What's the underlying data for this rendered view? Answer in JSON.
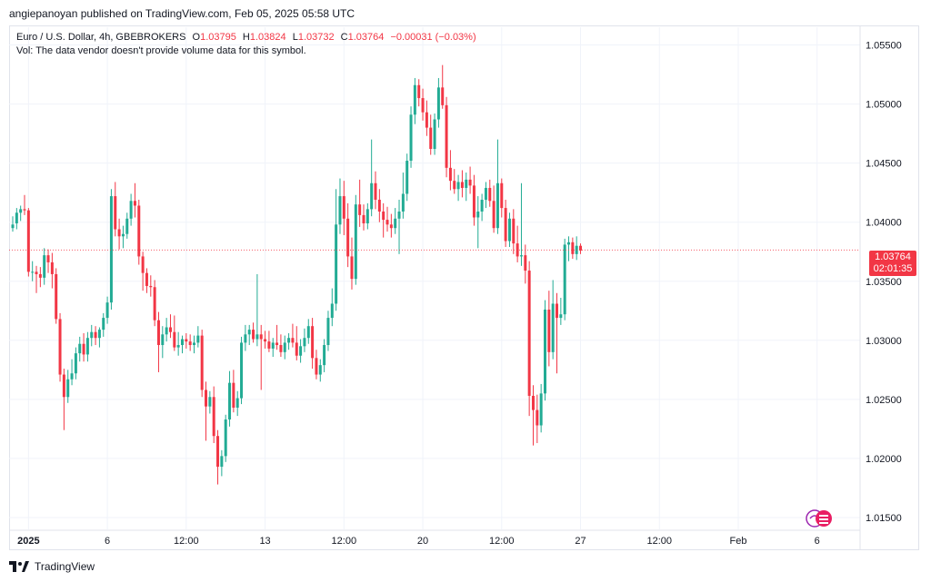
{
  "header": {
    "published_line": "angiepanoyan published on TradingView.com, Feb 05, 2025 05:58 UTC"
  },
  "legend": {
    "symbol": "Euro / U.S. Dollar, 4h, GBEBROKERS",
    "o_label": "O",
    "o_value": "1.03795",
    "h_label": "H",
    "h_value": "1.03824",
    "l_label": "L",
    "l_value": "1.03732",
    "c_label": "C",
    "c_value": "1.03764",
    "change": "−0.00031 (−0.03%)",
    "vol_note": "Vol: The data vendor doesn't provide volume data for this symbol."
  },
  "price_tag": {
    "price": "1.03764",
    "countdown": "02:01:35"
  },
  "footer": {
    "brand": "TradingView"
  },
  "colors": {
    "up": "#22ab94",
    "down": "#f23645",
    "grid": "#f0f3fa",
    "text": "#131722"
  },
  "chart_data": {
    "type": "candlestick",
    "title": "Euro / U.S. Dollar, 4h, GBEBROKERS",
    "ylim": [
      1.014,
      1.0565
    ],
    "y_ticks": [
      "1.05500",
      "1.05000",
      "1.04500",
      "1.04000",
      "1.03500",
      "1.03000",
      "1.02500",
      "1.02000",
      "1.01500"
    ],
    "y_tick_values": [
      1.055,
      1.05,
      1.045,
      1.04,
      1.035,
      1.03,
      1.025,
      1.02,
      1.015
    ],
    "x_ticks": [
      "2025",
      "6",
      "12:00",
      "13",
      "12:00",
      "20",
      "12:00",
      "27",
      "12:00",
      "Feb",
      "6"
    ],
    "x_tick_bar_index": [
      4,
      24,
      44,
      64,
      84,
      104,
      124,
      144,
      164,
      184,
      204
    ],
    "last_price": 1.03764,
    "candles": [
      [
        1.0395,
        1.0405,
        1.0392,
        1.0398
      ],
      [
        1.0399,
        1.0412,
        1.0394,
        1.0408
      ],
      [
        1.0408,
        1.0414,
        1.0401,
        1.0411
      ],
      [
        1.0411,
        1.0423,
        1.0406,
        1.041
      ],
      [
        1.041,
        1.0412,
        1.0354,
        1.0358
      ],
      [
        1.0358,
        1.0367,
        1.035,
        1.0358
      ],
      [
        1.0358,
        1.0363,
        1.034,
        1.0356
      ],
      [
        1.0356,
        1.0362,
        1.0345,
        1.0353
      ],
      [
        1.0353,
        1.0378,
        1.0347,
        1.0372
      ],
      [
        1.0372,
        1.0377,
        1.0357,
        1.0366
      ],
      [
        1.0366,
        1.0374,
        1.0344,
        1.0356
      ],
      [
        1.0356,
        1.0361,
        1.0314,
        1.0318
      ],
      [
        1.0318,
        1.0323,
        1.0265,
        1.0271
      ],
      [
        1.0271,
        1.0276,
        1.0224,
        1.0252
      ],
      [
        1.0252,
        1.0275,
        1.0247,
        1.0267
      ],
      [
        1.0267,
        1.0284,
        1.0262,
        1.0272
      ],
      [
        1.0272,
        1.0294,
        1.0267,
        1.0289
      ],
      [
        1.0289,
        1.0303,
        1.0282,
        1.0297
      ],
      [
        1.0297,
        1.0306,
        1.0282,
        1.0288
      ],
      [
        1.0288,
        1.0307,
        1.0282,
        1.0302
      ],
      [
        1.0302,
        1.0313,
        1.0295,
        1.0307
      ],
      [
        1.0307,
        1.0312,
        1.0296,
        1.0302
      ],
      [
        1.0302,
        1.0311,
        1.0294,
        1.0309
      ],
      [
        1.0309,
        1.0323,
        1.0303,
        1.0319
      ],
      [
        1.0319,
        1.0337,
        1.0314,
        1.0332
      ],
      [
        1.0332,
        1.0428,
        1.0326,
        1.0422
      ],
      [
        1.0422,
        1.0434,
        1.0388,
        1.0394
      ],
      [
        1.0394,
        1.0403,
        1.0377,
        1.0388
      ],
      [
        1.0388,
        1.0397,
        1.0378,
        1.039
      ],
      [
        1.039,
        1.0408,
        1.0386,
        1.0403
      ],
      [
        1.0403,
        1.0424,
        1.0397,
        1.0418
      ],
      [
        1.0418,
        1.0433,
        1.0404,
        1.0414
      ],
      [
        1.0414,
        1.0419,
        1.0364,
        1.0371
      ],
      [
        1.0371,
        1.0375,
        1.0342,
        1.0357
      ],
      [
        1.0357,
        1.0361,
        1.034,
        1.0346
      ],
      [
        1.0346,
        1.0355,
        1.0337,
        1.0345
      ],
      [
        1.0345,
        1.0351,
        1.0312,
        1.0317
      ],
      [
        1.0317,
        1.0324,
        1.0273,
        1.0296
      ],
      [
        1.0296,
        1.0312,
        1.0285,
        1.0305
      ],
      [
        1.0305,
        1.0319,
        1.0299,
        1.0311
      ],
      [
        1.0311,
        1.0322,
        1.0302,
        1.0307
      ],
      [
        1.0307,
        1.0321,
        1.0291,
        1.0294
      ],
      [
        1.0294,
        1.0307,
        1.0287,
        1.0296
      ],
      [
        1.0296,
        1.0304,
        1.0289,
        1.0301
      ],
      [
        1.0301,
        1.0306,
        1.0293,
        1.0299
      ],
      [
        1.0299,
        1.0305,
        1.0291,
        1.0296
      ],
      [
        1.0296,
        1.0304,
        1.0289,
        1.0298
      ],
      [
        1.0298,
        1.0312,
        1.0294,
        1.0304
      ],
      [
        1.0304,
        1.0309,
        1.0252,
        1.0258
      ],
      [
        1.0258,
        1.0265,
        1.0215,
        1.0244
      ],
      [
        1.0244,
        1.0257,
        1.0238,
        1.0252
      ],
      [
        1.0252,
        1.0261,
        1.0213,
        1.0219
      ],
      [
        1.0219,
        1.0224,
        1.0178,
        1.0193
      ],
      [
        1.0193,
        1.0207,
        1.0185,
        1.0202
      ],
      [
        1.0202,
        1.0237,
        1.0197,
        1.0233
      ],
      [
        1.0233,
        1.0274,
        1.0227,
        1.0264
      ],
      [
        1.0264,
        1.0275,
        1.0239,
        1.0243
      ],
      [
        1.0243,
        1.0257,
        1.0236,
        1.0251
      ],
      [
        1.0251,
        1.0303,
        1.0246,
        1.0298
      ],
      [
        1.0298,
        1.0313,
        1.0291,
        1.0305
      ],
      [
        1.0305,
        1.0313,
        1.0296,
        1.0309
      ],
      [
        1.0309,
        1.0315,
        1.0298,
        1.0301
      ],
      [
        1.0301,
        1.0356,
        1.0295,
        1.0305
      ],
      [
        1.0305,
        1.0313,
        1.0258,
        1.0301
      ],
      [
        1.0301,
        1.0308,
        1.0293,
        1.0299
      ],
      [
        1.0299,
        1.0308,
        1.029,
        1.0293
      ],
      [
        1.0293,
        1.0302,
        1.0286,
        1.0298
      ],
      [
        1.0298,
        1.0313,
        1.0292,
        1.0296
      ],
      [
        1.0296,
        1.0305,
        1.0286,
        1.029
      ],
      [
        1.029,
        1.0304,
        1.0284,
        1.0298
      ],
      [
        1.0298,
        1.0306,
        1.0292,
        1.0302
      ],
      [
        1.0302,
        1.0314,
        1.0294,
        1.0298
      ],
      [
        1.0298,
        1.0312,
        1.0283,
        1.0287
      ],
      [
        1.0287,
        1.0301,
        1.0281,
        1.0295
      ],
      [
        1.0295,
        1.031,
        1.029,
        1.0302
      ],
      [
        1.0302,
        1.0318,
        1.0297,
        1.0312
      ],
      [
        1.0312,
        1.0319,
        1.0276,
        1.0285
      ],
      [
        1.0285,
        1.0292,
        1.0267,
        1.0271
      ],
      [
        1.0271,
        1.0284,
        1.0265,
        1.0279
      ],
      [
        1.0279,
        1.0301,
        1.0273,
        1.0296
      ],
      [
        1.0296,
        1.0325,
        1.0291,
        1.0319
      ],
      [
        1.0319,
        1.0344,
        1.0312,
        1.0331
      ],
      [
        1.0331,
        1.0428,
        1.0325,
        1.0398
      ],
      [
        1.0398,
        1.0437,
        1.039,
        1.0422
      ],
      [
        1.0422,
        1.0435,
        1.0389,
        1.0403
      ],
      [
        1.0403,
        1.0416,
        1.0362,
        1.0371
      ],
      [
        1.0371,
        1.0387,
        1.0343,
        1.0352
      ],
      [
        1.0352,
        1.0423,
        1.0347,
        1.0415
      ],
      [
        1.0415,
        1.0436,
        1.0396,
        1.0406
      ],
      [
        1.0406,
        1.0415,
        1.0393,
        1.0399
      ],
      [
        1.0399,
        1.0416,
        1.0394,
        1.0411
      ],
      [
        1.0411,
        1.047,
        1.0405,
        1.0433
      ],
      [
        1.0433,
        1.0443,
        1.0411,
        1.0419
      ],
      [
        1.0419,
        1.0428,
        1.04,
        1.0409
      ],
      [
        1.0409,
        1.0416,
        1.0387,
        1.0402
      ],
      [
        1.0402,
        1.0413,
        1.0392,
        1.0398
      ],
      [
        1.0398,
        1.0407,
        1.0387,
        1.0395
      ],
      [
        1.0395,
        1.0412,
        1.039,
        1.0403
      ],
      [
        1.0403,
        1.0419,
        1.0373,
        1.0409
      ],
      [
        1.0409,
        1.0442,
        1.0403,
        1.0424
      ],
      [
        1.0424,
        1.0458,
        1.0418,
        1.0452
      ],
      [
        1.0452,
        1.0498,
        1.0446,
        1.0491
      ],
      [
        1.0491,
        1.0522,
        1.0483,
        1.0516
      ],
      [
        1.0516,
        1.0521,
        1.0498,
        1.0505
      ],
      [
        1.0505,
        1.0513,
        1.0486,
        1.0493
      ],
      [
        1.0493,
        1.0503,
        1.0473,
        1.048
      ],
      [
        1.048,
        1.0491,
        1.0457,
        1.0462
      ],
      [
        1.0462,
        1.0492,
        1.0457,
        1.0487
      ],
      [
        1.0487,
        1.0522,
        1.048,
        1.0514
      ],
      [
        1.0514,
        1.0533,
        1.0496,
        1.0499
      ],
      [
        1.0499,
        1.0506,
        1.0438,
        1.0446
      ],
      [
        1.0446,
        1.0461,
        1.0427,
        1.0435
      ],
      [
        1.0435,
        1.0445,
        1.0424,
        1.0428
      ],
      [
        1.0428,
        1.044,
        1.0418,
        1.0434
      ],
      [
        1.0434,
        1.0444,
        1.0421,
        1.0429
      ],
      [
        1.0429,
        1.0442,
        1.0418,
        1.0436
      ],
      [
        1.0436,
        1.0447,
        1.0424,
        1.0431
      ],
      [
        1.0431,
        1.044,
        1.0397,
        1.0404
      ],
      [
        1.0404,
        1.0422,
        1.0378,
        1.0409
      ],
      [
        1.0409,
        1.0424,
        1.0401,
        1.0419
      ],
      [
        1.0419,
        1.0434,
        1.0412,
        1.0429
      ],
      [
        1.0429,
        1.0436,
        1.0413,
        1.0418
      ],
      [
        1.0418,
        1.0431,
        1.0391,
        1.0395
      ],
      [
        1.0395,
        1.047,
        1.039,
        1.0433
      ],
      [
        1.0433,
        1.0437,
        1.0404,
        1.0412
      ],
      [
        1.0412,
        1.0419,
        1.0379,
        1.0384
      ],
      [
        1.0384,
        1.0408,
        1.0379,
        1.0403
      ],
      [
        1.0403,
        1.0411,
        1.0373,
        1.0382
      ],
      [
        1.0382,
        1.0397,
        1.0366,
        1.0371
      ],
      [
        1.0371,
        1.0433,
        1.0363,
        1.0372
      ],
      [
        1.0372,
        1.0381,
        1.0348,
        1.0359
      ],
      [
        1.0359,
        1.0367,
        1.0236,
        1.0253
      ],
      [
        1.0253,
        1.0262,
        1.0211,
        1.0241
      ],
      [
        1.0241,
        1.0254,
        1.0213,
        1.0228
      ],
      [
        1.0228,
        1.0263,
        1.0222,
        1.0255
      ],
      [
        1.0255,
        1.0334,
        1.0249,
        1.0326
      ],
      [
        1.0326,
        1.0342,
        1.0278,
        1.029
      ],
      [
        1.029,
        1.0351,
        1.0284,
        1.0331
      ],
      [
        1.0331,
        1.034,
        1.0272,
        1.0319
      ],
      [
        1.0319,
        1.0336,
        1.0313,
        1.0322
      ],
      [
        1.0322,
        1.0386,
        1.0317,
        1.0381
      ],
      [
        1.0381,
        1.0388,
        1.0367,
        1.0383
      ],
      [
        1.0383,
        1.0387,
        1.0369,
        1.0373
      ],
      [
        1.0373,
        1.0388,
        1.0368,
        1.038
      ],
      [
        1.038,
        1.0382,
        1.0373,
        1.0376
      ]
    ]
  }
}
